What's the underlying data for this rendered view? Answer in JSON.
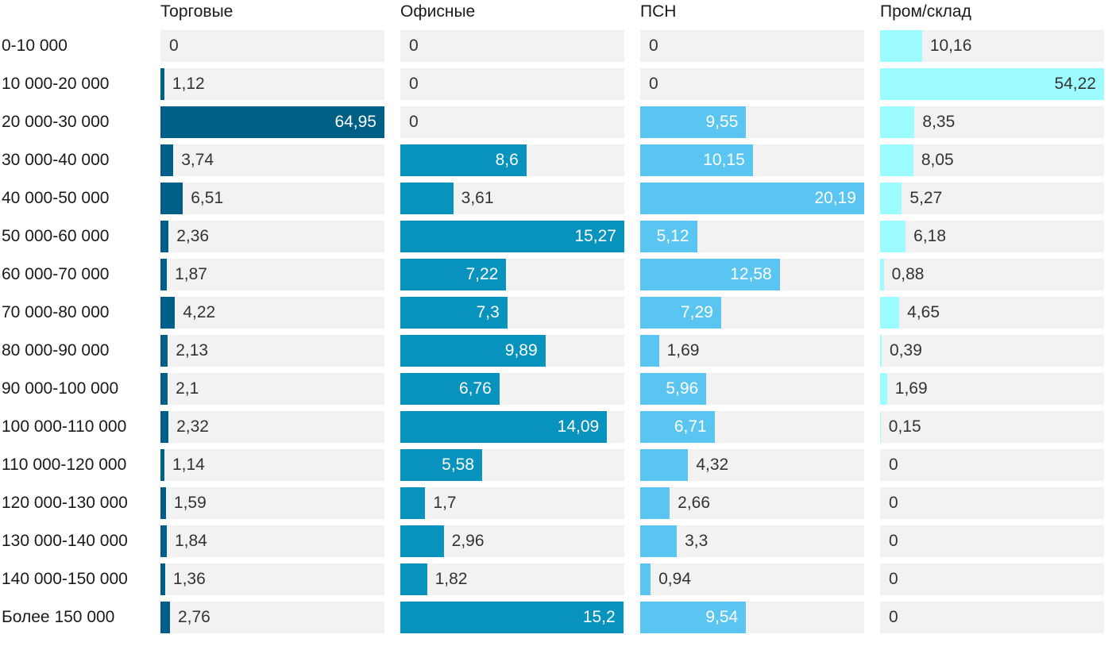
{
  "chart_data": {
    "type": "bar",
    "orientation": "horizontal",
    "layout": "small-multiples",
    "categories": [
      "0-10 000",
      "10 000-20 000",
      "20 000-30 000",
      "30 000-40 000",
      "40 000-50 000",
      "50 000-60 000",
      "60 000-70 000",
      "70 000-80 000",
      "80 000-90 000",
      "90 000-100 000",
      "100 000-110 000",
      "110 000-120 000",
      "120 000-130 000",
      "130 000-140 000",
      "140 000-150 000",
      "Более 150 000"
    ],
    "series": [
      {
        "name": "Торговые",
        "color": "#005f85",
        "max": 64.95,
        "values": [
          0,
          1.12,
          64.95,
          3.74,
          6.51,
          2.36,
          1.87,
          4.22,
          2.13,
          2.1,
          2.32,
          1.14,
          1.59,
          1.84,
          1.36,
          2.76
        ],
        "labels": [
          "0",
          "1,12",
          "64,95",
          "3,74",
          "6,51",
          "2,36",
          "1,87",
          "4,22",
          "2,13",
          "2,1",
          "2,32",
          "1,14",
          "1,59",
          "1,84",
          "1,36",
          "2,76"
        ]
      },
      {
        "name": "Офисные",
        "color": "#0793bd",
        "max": 15.27,
        "values": [
          0,
          0,
          0,
          8.6,
          3.61,
          15.27,
          7.22,
          7.3,
          9.89,
          6.76,
          14.09,
          5.58,
          1.7,
          2.96,
          1.82,
          15.2
        ],
        "labels": [
          "0",
          "0",
          "0",
          "8,6",
          "3,61",
          "15,27",
          "7,22",
          "7,3",
          "9,89",
          "6,76",
          "14,09",
          "5,58",
          "1,7",
          "2,96",
          "1,82",
          "15,2"
        ]
      },
      {
        "name": "ПСН",
        "color": "#5bc5f2",
        "max": 20.19,
        "values": [
          0,
          0,
          9.55,
          10.15,
          20.19,
          5.12,
          12.58,
          7.29,
          1.69,
          5.96,
          6.71,
          4.32,
          2.66,
          3.3,
          0.94,
          9.54
        ],
        "labels": [
          "0",
          "0",
          "9,55",
          "10,15",
          "20,19",
          "5,12",
          "12,58",
          "7,29",
          "1,69",
          "5,96",
          "6,71",
          "4,32",
          "2,66",
          "3,3",
          "0,94",
          "9,54"
        ]
      },
      {
        "name": "Пром/склад",
        "color": "#9dfcff",
        "max": 54.22,
        "values": [
          10.16,
          54.22,
          8.35,
          8.05,
          5.27,
          6.18,
          0.88,
          4.65,
          0.39,
          1.69,
          0.15,
          0,
          0,
          0,
          0,
          0
        ],
        "labels": [
          "10,16",
          "54,22",
          "8,35",
          "8,05",
          "5,27",
          "6,18",
          "0,88",
          "4,65",
          "0,39",
          "1,69",
          "0,15",
          "0",
          "0",
          "0",
          "0",
          "0"
        ]
      }
    ],
    "track_color": "#f2f2f2"
  }
}
